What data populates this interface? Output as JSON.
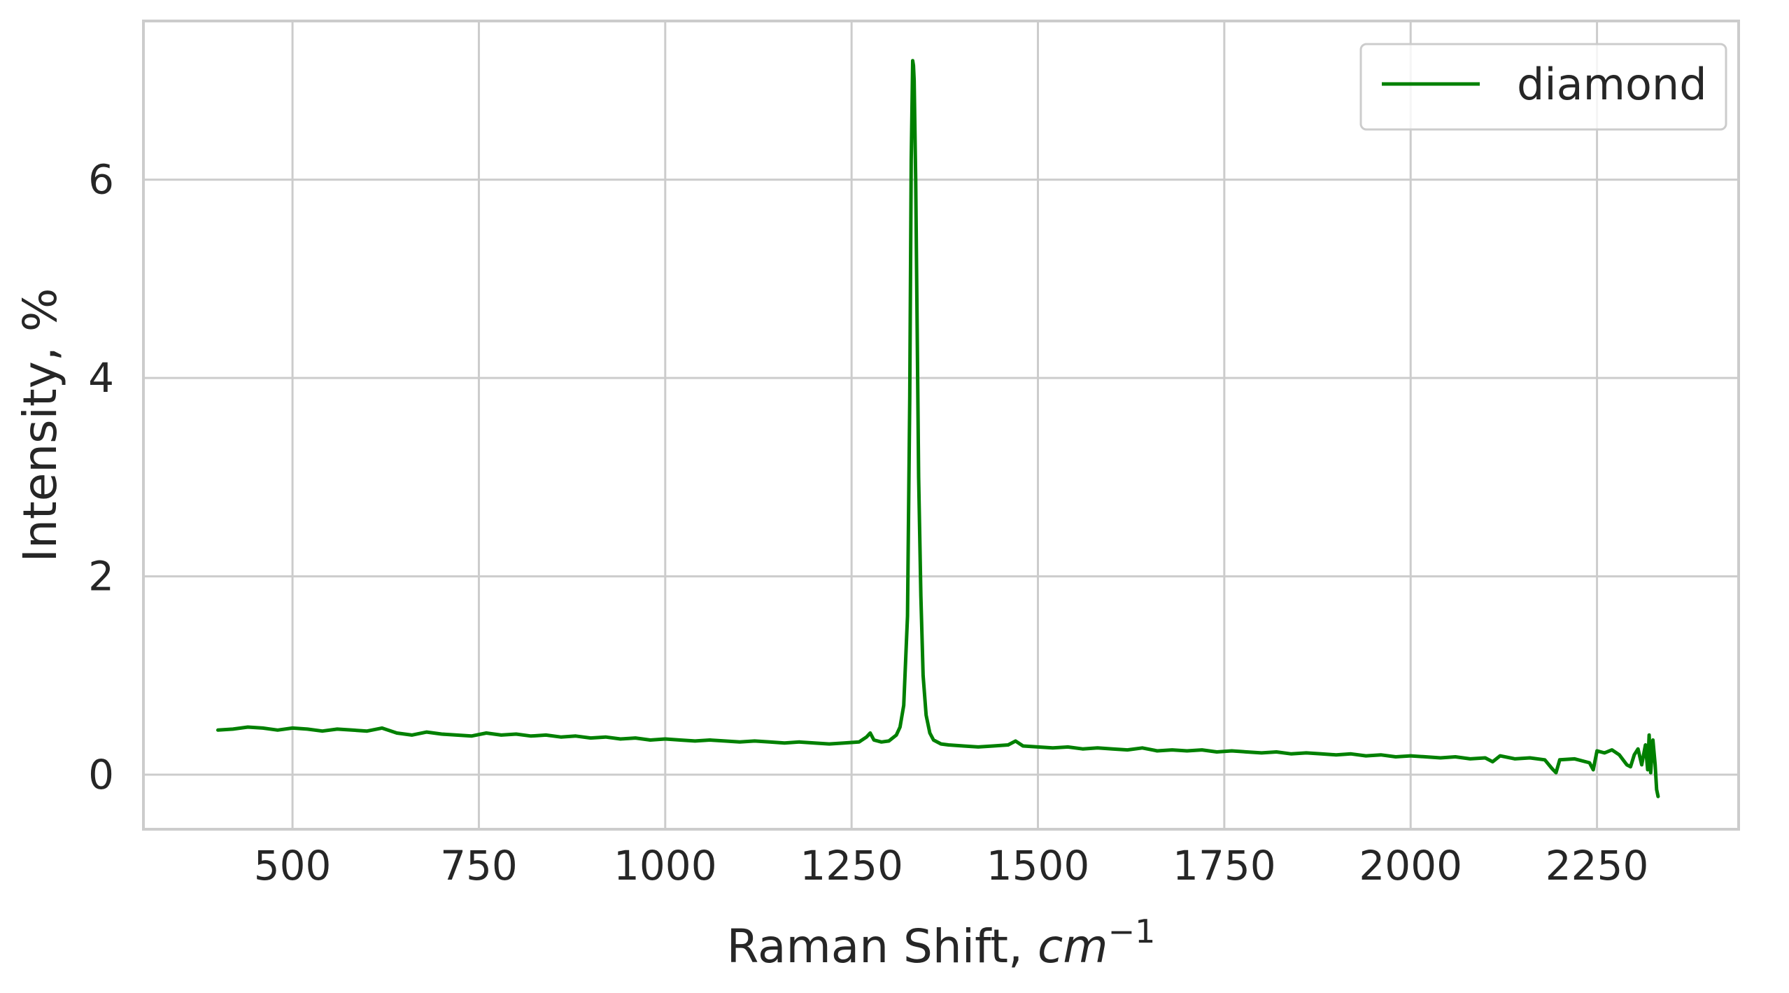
{
  "chart_data": {
    "type": "line",
    "title": "",
    "xlabel": "Raman Shift, ",
    "xlabel_math": "cm",
    "xlabel_exp": "−1",
    "ylabel": "Intensity, %",
    "xlim": [
      300,
      2440
    ],
    "ylim": [
      -0.55,
      7.6
    ],
    "grid": true,
    "legend": "top-right",
    "xticks": [
      500,
      750,
      1000,
      1250,
      1500,
      1750,
      2000,
      2250
    ],
    "xtick_labels": [
      "500",
      "750",
      "1000",
      "1250",
      "1500",
      "1750",
      "2000",
      "2250"
    ],
    "yticks": [
      0,
      2,
      4,
      6
    ],
    "ytick_labels": [
      "0",
      "2",
      "4",
      "6"
    ],
    "series": [
      {
        "name": "diamond",
        "color": "#008000",
        "x": [
          400,
          420,
          440,
          460,
          480,
          500,
          520,
          540,
          560,
          580,
          600,
          620,
          640,
          660,
          680,
          700,
          720,
          740,
          760,
          780,
          800,
          820,
          840,
          860,
          880,
          900,
          920,
          940,
          960,
          980,
          1000,
          1020,
          1040,
          1060,
          1080,
          1100,
          1120,
          1140,
          1160,
          1180,
          1200,
          1220,
          1240,
          1260,
          1270,
          1275,
          1280,
          1290,
          1300,
          1310,
          1315,
          1320,
          1325,
          1328,
          1330,
          1332,
          1333,
          1334,
          1336,
          1338,
          1340,
          1343,
          1346,
          1350,
          1355,
          1360,
          1370,
          1380,
          1400,
          1420,
          1440,
          1460,
          1470,
          1480,
          1500,
          1520,
          1540,
          1560,
          1580,
          1600,
          1620,
          1640,
          1660,
          1680,
          1700,
          1720,
          1740,
          1760,
          1780,
          1800,
          1820,
          1840,
          1860,
          1880,
          1900,
          1920,
          1940,
          1960,
          1980,
          2000,
          2020,
          2040,
          2060,
          2080,
          2100,
          2110,
          2120,
          2140,
          2160,
          2180,
          2190,
          2195,
          2200,
          2220,
          2240,
          2245,
          2250,
          2260,
          2270,
          2280,
          2290,
          2295,
          2300,
          2305,
          2310,
          2315,
          2318,
          2320,
          2322,
          2325,
          2328,
          2330,
          2332
        ],
        "y": [
          0.45,
          0.46,
          0.48,
          0.47,
          0.45,
          0.47,
          0.46,
          0.44,
          0.46,
          0.45,
          0.44,
          0.47,
          0.42,
          0.4,
          0.43,
          0.41,
          0.4,
          0.39,
          0.42,
          0.4,
          0.41,
          0.39,
          0.4,
          0.38,
          0.39,
          0.37,
          0.38,
          0.36,
          0.37,
          0.35,
          0.36,
          0.35,
          0.34,
          0.35,
          0.34,
          0.33,
          0.34,
          0.33,
          0.32,
          0.33,
          0.32,
          0.31,
          0.32,
          0.33,
          0.38,
          0.42,
          0.35,
          0.33,
          0.34,
          0.4,
          0.48,
          0.7,
          1.6,
          3.8,
          6.2,
          7.2,
          7.15,
          7.0,
          6.0,
          4.5,
          3.0,
          1.8,
          1.0,
          0.6,
          0.42,
          0.35,
          0.31,
          0.3,
          0.29,
          0.28,
          0.29,
          0.3,
          0.34,
          0.29,
          0.28,
          0.27,
          0.28,
          0.26,
          0.27,
          0.26,
          0.25,
          0.27,
          0.24,
          0.25,
          0.24,
          0.25,
          0.23,
          0.24,
          0.23,
          0.22,
          0.23,
          0.21,
          0.22,
          0.21,
          0.2,
          0.21,
          0.19,
          0.2,
          0.18,
          0.19,
          0.18,
          0.17,
          0.18,
          0.16,
          0.17,
          0.13,
          0.19,
          0.16,
          0.17,
          0.15,
          0.06,
          0.02,
          0.15,
          0.16,
          0.12,
          0.05,
          0.24,
          0.22,
          0.25,
          0.2,
          0.1,
          0.08,
          0.2,
          0.26,
          0.1,
          0.3,
          0.05,
          0.4,
          0.02,
          0.35,
          0.1,
          -0.15,
          -0.22
        ],
        "line_width": 5
      }
    ]
  }
}
